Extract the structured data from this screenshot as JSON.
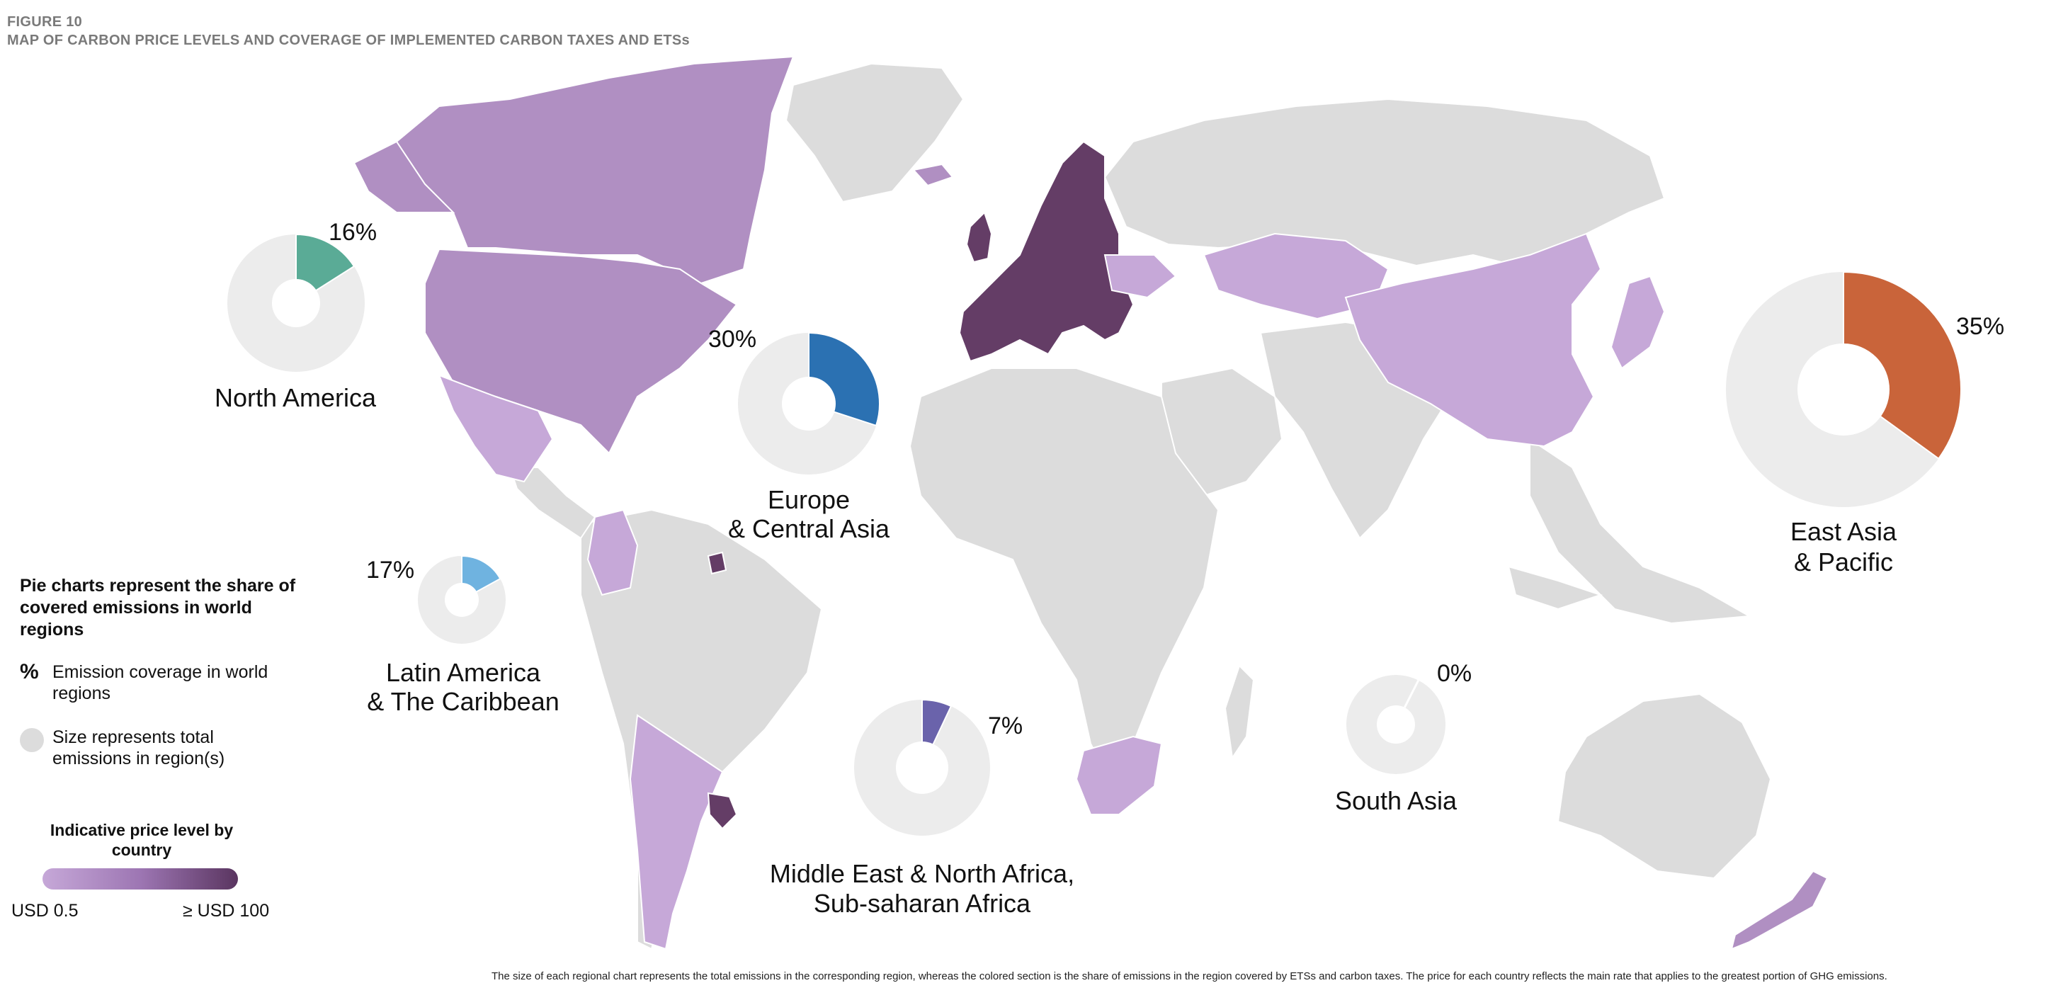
{
  "figure": {
    "kicker": "FIGURE 10",
    "title": "MAP OF CARBON PRICE LEVELS AND COVERAGE OF IMPLEMENTED CARBON TAXES AND ETSs"
  },
  "colors": {
    "land_uncovered": "#dcdcdc",
    "price_low": "#c6a8d8",
    "price_high": "#5a3560",
    "pie_remainder": "#ececec"
  },
  "regions": [
    {
      "name_line1": "North America",
      "name_line2": "",
      "coverage_label": "16%",
      "coverage": 16,
      "color": "#5aab96"
    },
    {
      "name_line1": "Europe",
      "name_line2": "& Central Asia",
      "coverage_label": "30%",
      "coverage": 30,
      "color": "#2b71b2"
    },
    {
      "name_line1": "Latin America",
      "name_line2": "& The Caribbean",
      "coverage_label": "17%",
      "coverage": 17,
      "color": "#6fb3e0"
    },
    {
      "name_line1": "Middle East & North Africa,",
      "name_line2": "Sub-saharan Africa",
      "coverage_label": "7%",
      "coverage": 7,
      "color": "#6a63ab"
    },
    {
      "name_line1": "South Asia",
      "name_line2": "",
      "coverage_label": "0%",
      "coverage": 0,
      "color": "#cccccc"
    },
    {
      "name_line1": "East Asia",
      "name_line2": "& Pacific",
      "coverage_label": "35%",
      "coverage": 35,
      "color": "#c9643a"
    }
  ],
  "legend": {
    "heading": "Pie charts represent the share of covered emissions in world regions",
    "percent_symbol": "%",
    "percent_text": "Emission coverage in world regions",
    "size_text": "Size represents total emissions in region(s)",
    "price_title": "Indicative price level by country",
    "price_min": "USD 0.5",
    "price_max": "≥ USD 100"
  },
  "footnote": "The size of each regional chart represents the total emissions in the corresponding region, whereas the colored section is the share of emissions in the region covered by ETSs and carbon taxes. The price for each country reflects the main rate that applies to the greatest portion of GHG emissions."
}
